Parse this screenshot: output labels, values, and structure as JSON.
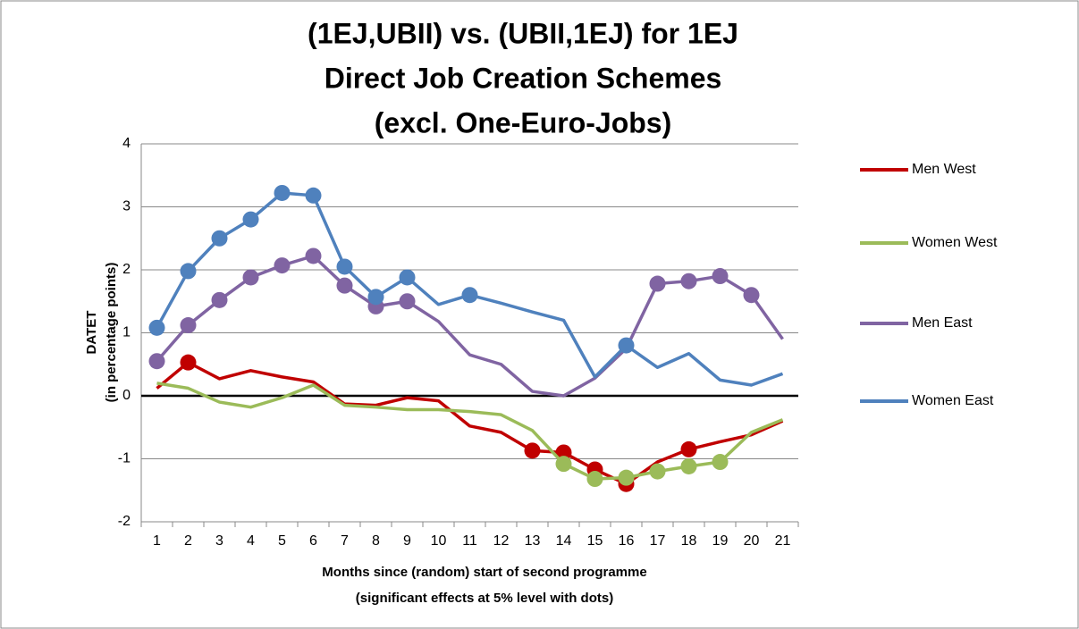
{
  "chart_data": {
    "type": "line",
    "title": [
      "(1EJ,UBII) vs. (UBII,1EJ) for 1EJ",
      "Direct Job Creation Schemes",
      "(excl. One-Euro-Jobs)"
    ],
    "y_label": [
      "DATET",
      "(in percentage points)"
    ],
    "x_label": [
      "Months since (random) start of second programme",
      "(significant  effects at 5% level with dots)"
    ],
    "categories": [
      "1",
      "2",
      "3",
      "4",
      "5",
      "6",
      "7",
      "8",
      "9",
      "10",
      "11",
      "12",
      "13",
      "14",
      "15",
      "16",
      "17",
      "18",
      "19",
      "20",
      "21"
    ],
    "ylim": [
      -2,
      4
    ],
    "yticks": [
      -2,
      -1,
      0,
      1,
      2,
      3,
      4
    ],
    "grid": true,
    "legend": "right",
    "series": [
      {
        "name": "Men West",
        "color": "#c00000",
        "values": [
          0.12,
          0.53,
          0.27,
          0.4,
          0.3,
          0.22,
          -0.13,
          -0.15,
          -0.03,
          -0.08,
          -0.48,
          -0.58,
          -0.87,
          -0.9,
          -1.17,
          -1.4,
          -1.05,
          -0.85,
          -0.73,
          -0.62,
          -0.4
        ],
        "markers": [
          false,
          true,
          false,
          false,
          false,
          false,
          false,
          false,
          false,
          false,
          false,
          false,
          true,
          true,
          true,
          true,
          false,
          true,
          false,
          false,
          false
        ]
      },
      {
        "name": "Women West",
        "color": "#9bbb59",
        "values": [
          0.2,
          0.12,
          -0.1,
          -0.18,
          -0.03,
          0.17,
          -0.15,
          -0.18,
          -0.22,
          -0.22,
          -0.25,
          -0.3,
          -0.55,
          -1.08,
          -1.32,
          -1.3,
          -1.2,
          -1.12,
          -1.05,
          -0.58,
          -0.38
        ],
        "markers": [
          false,
          false,
          false,
          false,
          false,
          false,
          false,
          false,
          false,
          false,
          false,
          false,
          false,
          true,
          true,
          true,
          true,
          true,
          true,
          false,
          false
        ]
      },
      {
        "name": "Men East",
        "color": "#8064a2",
        "values": [
          0.55,
          1.12,
          1.52,
          1.88,
          2.07,
          2.22,
          1.75,
          1.42,
          1.5,
          1.18,
          0.65,
          0.5,
          0.07,
          0,
          0.28,
          0.75,
          1.78,
          1.82,
          1.9,
          1.6,
          0.9
        ],
        "markers": [
          true,
          true,
          true,
          true,
          true,
          true,
          true,
          true,
          true,
          false,
          false,
          false,
          false,
          false,
          false,
          false,
          true,
          true,
          true,
          true,
          false
        ]
      },
      {
        "name": "Women East",
        "color": "#4f81bd",
        "values": [
          1.08,
          1.98,
          2.5,
          2.8,
          3.22,
          3.18,
          2.05,
          1.57,
          1.88,
          1.45,
          1.6,
          1.47,
          1.33,
          1.2,
          0.3,
          0.8,
          0.45,
          0.67,
          0.25,
          0.17,
          0.35
        ],
        "markers": [
          true,
          true,
          true,
          true,
          true,
          true,
          true,
          true,
          true,
          false,
          true,
          false,
          false,
          false,
          false,
          true,
          false,
          false,
          false,
          false,
          false
        ]
      }
    ]
  }
}
